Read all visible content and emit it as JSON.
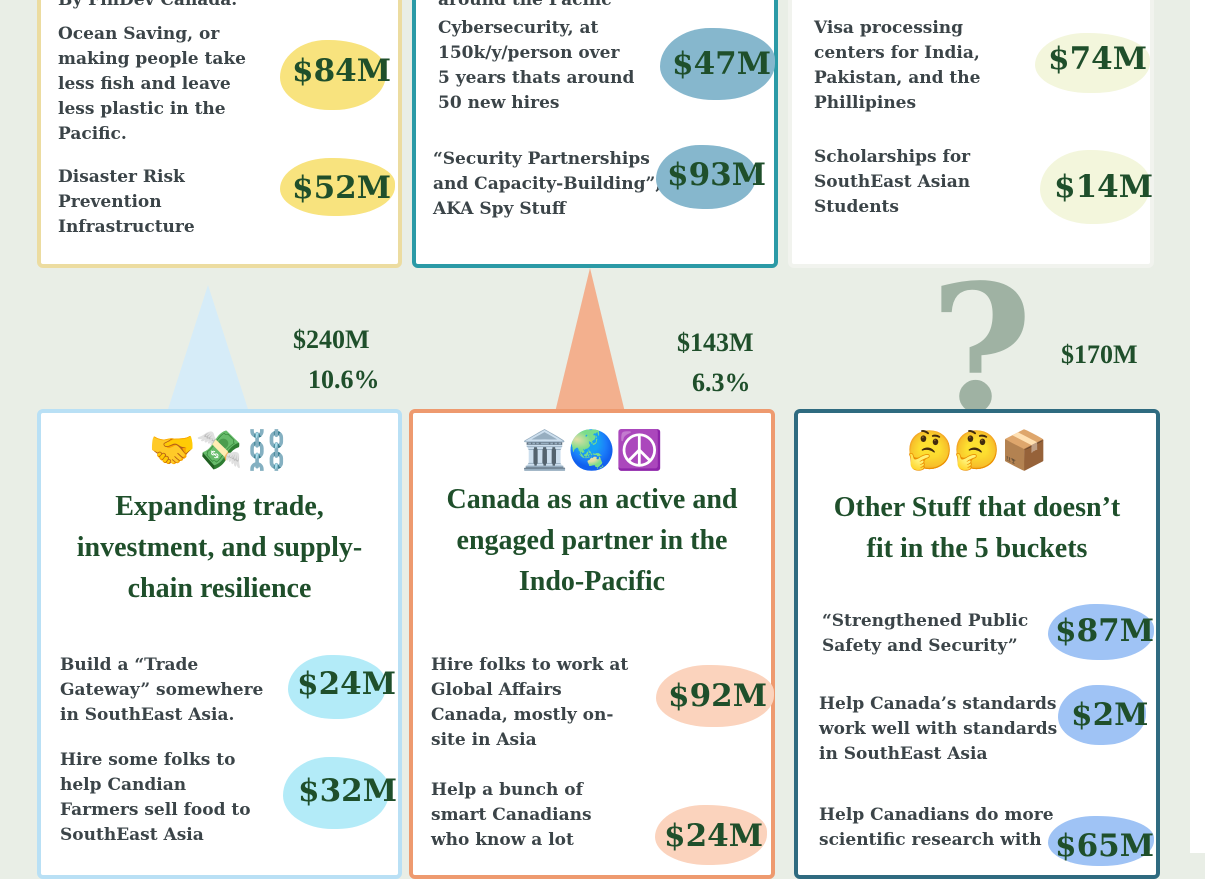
{
  "top_row": {
    "card1": {
      "header_partial": "By FinDev Canada.",
      "items": [
        {
          "text_lines": [
            "Ocean Saving, or",
            "making people take",
            "less fish and leave",
            "less plastic in the",
            "Pacific."
          ],
          "amount": "$84M"
        },
        {
          "text_lines": [
            "Disaster Risk",
            "Prevention",
            "Infrastructure"
          ],
          "amount": "$52M"
        }
      ]
    },
    "card2": {
      "header_partial": "around the Pacific",
      "items": [
        {
          "text_lines": [
            "Cybersecurity, at",
            "150k/y/person over",
            "5 years thats around",
            "50 new hires"
          ],
          "amount": "$47M"
        },
        {
          "text_lines": [
            "“Security Partnerships",
            "and Capacity-Building”,",
            "AKA Spy Stuff"
          ],
          "amount": "$93M"
        }
      ]
    },
    "card3": {
      "items": [
        {
          "text_lines": [
            "Visa processing",
            "centers for India,",
            "Pakistan, and the",
            "Phillipines"
          ],
          "amount": "$74M"
        },
        {
          "text_lines": [
            "Scholarships for",
            "SouthEast Asian",
            "Students"
          ],
          "amount": "$14M"
        }
      ]
    }
  },
  "totals": {
    "trade": {
      "amount": "$240M",
      "percent": "10.6%"
    },
    "partner": {
      "amount": "$143M",
      "percent": "6.3%"
    },
    "other": {
      "amount": "$170M"
    },
    "question_mark": "?"
  },
  "bottom_row": {
    "trade": {
      "emoji": "🤝💸⛓️",
      "title_lines": [
        "Expanding trade,",
        "investment, and supply-",
        "chain resilience"
      ],
      "items": [
        {
          "text_lines": [
            "Build a “Trade",
            "Gateway” somewhere",
            "in SouthEast Asia."
          ],
          "amount": "$24M"
        },
        {
          "text_lines": [
            "Hire some folks to",
            "help Candian",
            "Farmers sell food to",
            "SouthEast Asia"
          ],
          "amount": "$32M"
        }
      ]
    },
    "partner": {
      "emoji": "🏛️🌏☮️",
      "title_lines": [
        "Canada as an active and",
        "engaged partner in the",
        "Indo-Pacific"
      ],
      "items": [
        {
          "text_lines": [
            "Hire folks to work at",
            "Global Affairs",
            "Canada, mostly on-",
            "site in Asia"
          ],
          "amount": "$92M"
        },
        {
          "text_lines": [
            "Help a bunch of",
            "smart Canadians",
            "who know a lot"
          ],
          "amount": "$24M"
        }
      ]
    },
    "other": {
      "emoji": "🤔🤔📦",
      "title_lines": [
        "Other Stuff that doesn’t",
        "fit in the 5 buckets"
      ],
      "items": [
        {
          "text_lines": [
            "“Strengthened Public",
            "Safety and Security”"
          ],
          "amount": "$87M"
        },
        {
          "text_lines": [
            "Help Canada’s standards",
            "work well with standards",
            "in SouthEast Asia"
          ],
          "amount": "$2M"
        },
        {
          "text_lines": [
            "Help Canadians do more",
            "scientific research with"
          ],
          "amount": "$65M"
        }
      ]
    }
  },
  "colors": {
    "background": "#e9eee6",
    "amount_text": "#1f4f2b",
    "card1_border": "#ecdca0",
    "card2_border": "#2b9aa6",
    "card3_border": "#f1f3ee",
    "trade_border": "#b9e0f5",
    "partner_border": "#ee9a6f",
    "other_border": "#2f6b80",
    "blob_yellow": "#f8e37e",
    "blob_teal": "#86b7cd",
    "blob_pale": "#f3f6dc",
    "blob_cyan": "#b3ebf8",
    "blob_peach": "#fbd3bd",
    "blob_blue": "#9fc3f5"
  }
}
